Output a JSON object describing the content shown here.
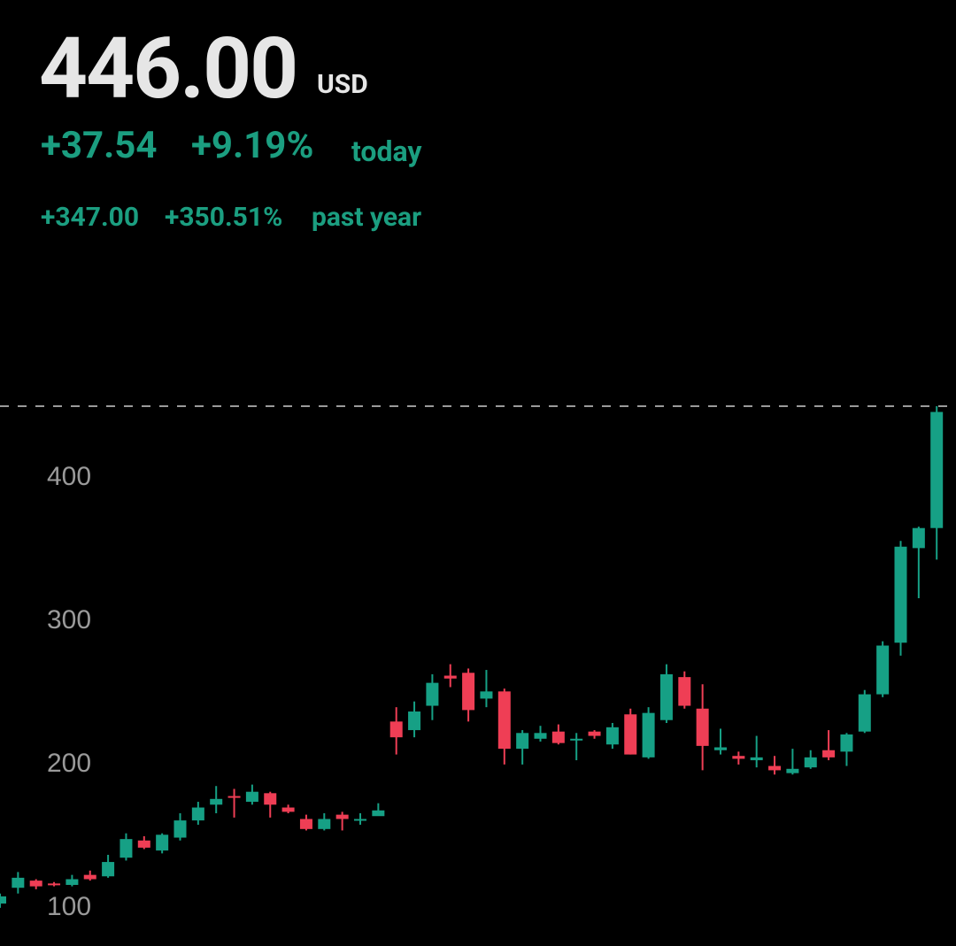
{
  "header": {
    "price": "446.00",
    "currency": "USD",
    "day_change": "+37.54",
    "day_change_percent": "+9.19%",
    "day_label": "today",
    "year_change": "+347.00",
    "year_change_percent": "+350.51%",
    "year_label": "past year"
  },
  "chart_data": {
    "type": "candlestick",
    "ylim": [
      74,
      452
    ],
    "yticks": [
      100,
      200,
      300,
      400
    ],
    "grid": false,
    "reference_line": 450,
    "up_color": "#16a085",
    "down_color": "#ef3e55",
    "open": [
      103,
      114,
      119,
      117,
      116,
      123,
      122,
      135,
      147,
      140,
      149,
      161,
      172,
      178,
      174,
      180,
      170,
      162,
      155,
      165,
      161,
      164,
      230,
      224,
      241,
      262,
      264,
      246,
      251,
      211,
      218,
      223,
      217,
      223,
      214,
      235,
      205,
      231,
      261,
      239,
      210,
      206,
      203,
      199,
      194,
      198,
      210,
      209,
      223,
      249,
      285,
      351,
      365
    ],
    "high": [
      110,
      125,
      120,
      118,
      123,
      126,
      137,
      152,
      150,
      152,
      166,
      174,
      185,
      183,
      186,
      181,
      172,
      165,
      166,
      167,
      166,
      173,
      240,
      244,
      263,
      270,
      267,
      266,
      253,
      224,
      227,
      228,
      222,
      224,
      229,
      239,
      240,
      270,
      265,
      256,
      225,
      209,
      220,
      206,
      211,
      210,
      224,
      222,
      252,
      286,
      356,
      366,
      450
    ],
    "low": [
      100,
      110,
      113,
      115,
      115,
      119,
      121,
      133,
      141,
      138,
      147,
      158,
      166,
      163,
      172,
      163,
      166,
      154,
      154,
      154,
      158,
      165,
      207,
      219,
      231,
      254,
      230,
      240,
      200,
      200,
      216,
      214,
      203,
      218,
      211,
      207,
      204,
      229,
      239,
      196,
      207,
      200,
      198,
      193,
      193,
      197,
      203,
      199,
      222,
      247,
      276,
      316,
      343
    ],
    "close": [
      108,
      121,
      115,
      116,
      120,
      120,
      132,
      148,
      142,
      151,
      161,
      170,
      176,
      177,
      181,
      172,
      167,
      155,
      162,
      162,
      162,
      168,
      219,
      237,
      257,
      260,
      238,
      251,
      211,
      222,
      222,
      215,
      218,
      220,
      226,
      207,
      236,
      263,
      241,
      213,
      212,
      204,
      205,
      196,
      197,
      205,
      205,
      221,
      249,
      283,
      352,
      365,
      446
    ]
  }
}
